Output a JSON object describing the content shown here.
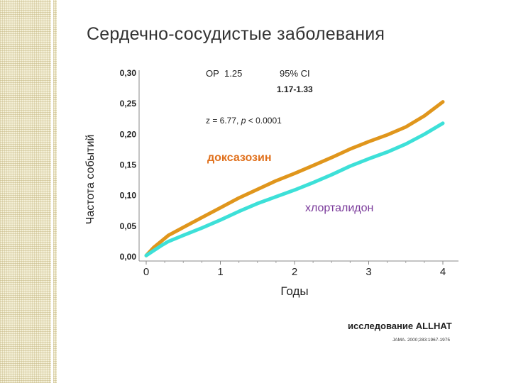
{
  "slide": {
    "title": "Сердечно-сосудистые заболевания",
    "source_main": "исследование ALLHAT",
    "source_ref": "JAMA. 2000;283:1967-1975"
  },
  "chart_data": {
    "type": "line",
    "xlabel": "Годы",
    "ylabel": "Частота событий",
    "xlim": [
      0,
      4
    ],
    "ylim": [
      0.0,
      0.3
    ],
    "x_ticks": [
      "0",
      "1",
      "2",
      "3",
      "4"
    ],
    "y_ticks": [
      "0,00",
      "0,05",
      "0,10",
      "0,15",
      "0,20",
      "0,25",
      "0,30"
    ],
    "grid": false,
    "series": [
      {
        "name": "доксазозин",
        "color": "#e0961c",
        "x": [
          0.0,
          0.1,
          0.2,
          0.3,
          0.5,
          0.75,
          1.0,
          1.25,
          1.5,
          1.75,
          2.0,
          2.25,
          2.5,
          2.75,
          3.0,
          3.25,
          3.5,
          3.75,
          4.0
        ],
        "y": [
          0.002,
          0.015,
          0.025,
          0.035,
          0.048,
          0.064,
          0.08,
          0.096,
          0.11,
          0.124,
          0.136,
          0.149,
          0.162,
          0.176,
          0.188,
          0.199,
          0.212,
          0.23,
          0.253
        ]
      },
      {
        "name": "хлорталидон",
        "color": "#3de0d8",
        "x": [
          0.0,
          0.1,
          0.2,
          0.3,
          0.5,
          0.75,
          1.0,
          1.25,
          1.5,
          1.75,
          2.0,
          2.25,
          2.5,
          2.75,
          3.0,
          3.25,
          3.5,
          3.75,
          4.0
        ],
        "y": [
          0.002,
          0.01,
          0.018,
          0.025,
          0.035,
          0.047,
          0.06,
          0.074,
          0.087,
          0.098,
          0.109,
          0.121,
          0.134,
          0.148,
          0.16,
          0.171,
          0.184,
          0.2,
          0.218
        ]
      }
    ],
    "annotations": {
      "or_label": "ОР  1.25",
      "ci_label": "95% CI",
      "ci_values": "1.17-1.33",
      "z_text": "z = 6.77,",
      "p_symbol": "p",
      "p_value": "< 0.0001"
    }
  }
}
